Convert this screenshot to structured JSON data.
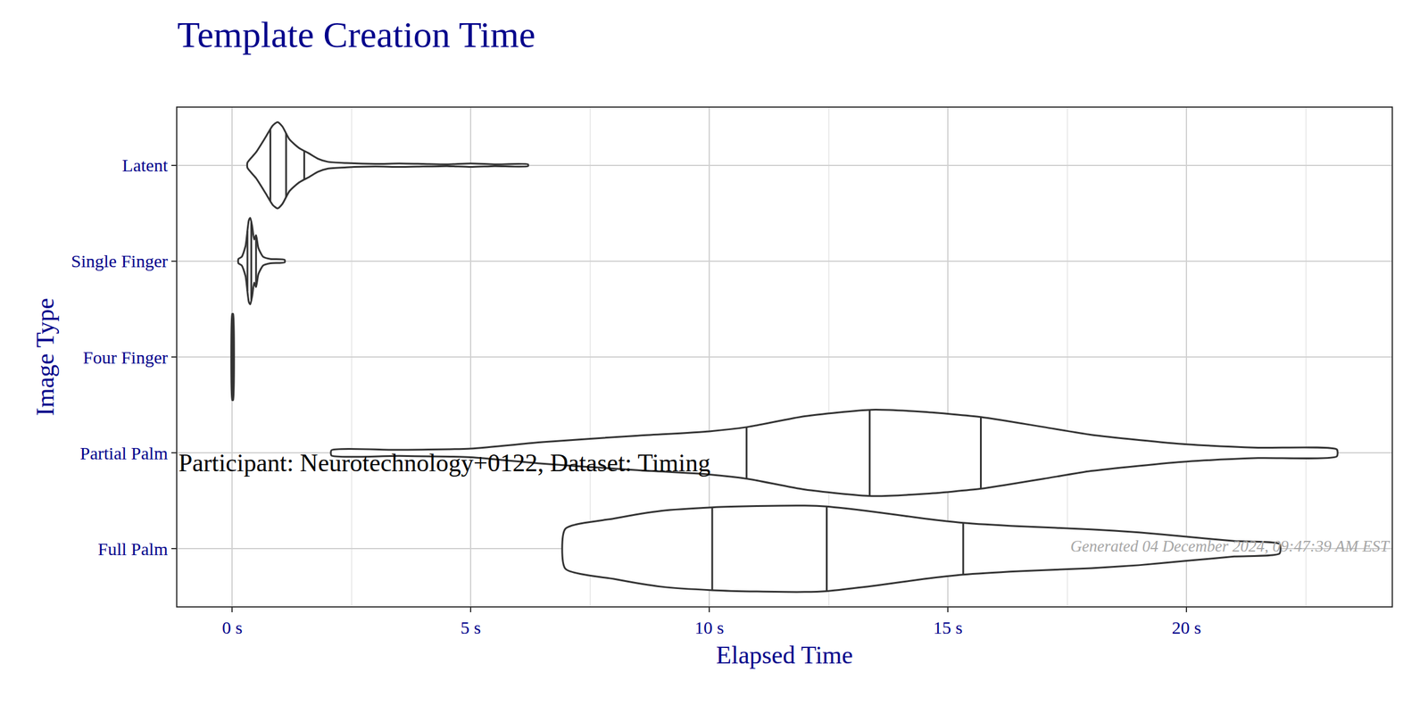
{
  "chart_data": {
    "type": "violin",
    "title": "Template Creation Time",
    "subtitle": "Participant: Neurotechnology+0122, Dataset: Timing",
    "x_label": "Elapsed Time",
    "y_label": "Image Type",
    "caption": "Generated 04 December 2024, 09:47:39 AM EST",
    "orientation": "horizontal",
    "grid": true,
    "color": "#333333",
    "categories": [
      "Latent",
      "Single Finger",
      "Four Finger",
      "Partial Palm",
      "Full Palm"
    ],
    "violins": [
      {
        "x": [
          0.32,
          0.5,
          0.7,
          0.85,
          0.95,
          1.05,
          1.2,
          1.4,
          1.6,
          1.8,
          2.0,
          2.4,
          3.0,
          3.5,
          4.0,
          4.5,
          5.0,
          5.5,
          6.2
        ],
        "density": [
          0.06,
          0.3,
          0.65,
          0.92,
          1.0,
          0.9,
          0.6,
          0.4,
          0.28,
          0.15,
          0.08,
          0.05,
          0.03,
          0.04,
          0.03,
          0.02,
          0.04,
          0.02,
          0.02
        ],
        "quartiles": [
          0.8,
          1.13,
          1.51
        ]
      },
      {
        "x": [
          0.13,
          0.2,
          0.28,
          0.35,
          0.38,
          0.42,
          0.46,
          0.5,
          0.55,
          0.65,
          0.8,
          1.1
        ],
        "density": [
          0.05,
          0.1,
          0.35,
          0.95,
          1.0,
          0.8,
          0.5,
          0.6,
          0.3,
          0.1,
          0.05,
          0.03
        ],
        "quartiles": [
          0.32,
          0.4,
          0.5
        ]
      },
      {
        "x": [
          0.0,
          0.01,
          0.02
        ],
        "density": [
          1.0,
          1.0,
          1.0
        ],
        "quartiles": [
          0.01,
          0.01,
          0.01
        ]
      },
      {
        "x": [
          2.08,
          3.5,
          5.0,
          6.5,
          8.5,
          10.0,
          10.8,
          12.0,
          13.4,
          14.5,
          15.7,
          17.0,
          18.0,
          19.0,
          20.0,
          21.5,
          23.15
        ],
        "density": [
          0.06,
          0.07,
          0.1,
          0.25,
          0.4,
          0.5,
          0.6,
          0.85,
          1.0,
          0.95,
          0.83,
          0.6,
          0.42,
          0.3,
          0.2,
          0.12,
          0.08
        ],
        "quartiles": [
          10.78,
          13.36,
          15.69
        ]
      },
      {
        "x": [
          6.98,
          8.0,
          9.0,
          10.06,
          11.0,
          12.0,
          12.46,
          13.5,
          14.5,
          15.32,
          16.5,
          18.0,
          19.0,
          20.0,
          21.0,
          21.95
        ],
        "density": [
          0.46,
          0.7,
          0.88,
          0.96,
          0.99,
          1.0,
          0.98,
          0.85,
          0.7,
          0.6,
          0.52,
          0.45,
          0.38,
          0.28,
          0.18,
          0.11
        ],
        "quartiles": [
          10.06,
          12.46,
          15.32
        ]
      }
    ],
    "xlim": [
      -1.15,
      24.3
    ],
    "xticks": [
      {
        "value": 0,
        "label": "0 s"
      },
      {
        "value": 5,
        "label": "5 s"
      },
      {
        "value": 10,
        "label": "10 s"
      },
      {
        "value": 15,
        "label": "15 s"
      },
      {
        "value": 20,
        "label": "20 s"
      }
    ]
  }
}
